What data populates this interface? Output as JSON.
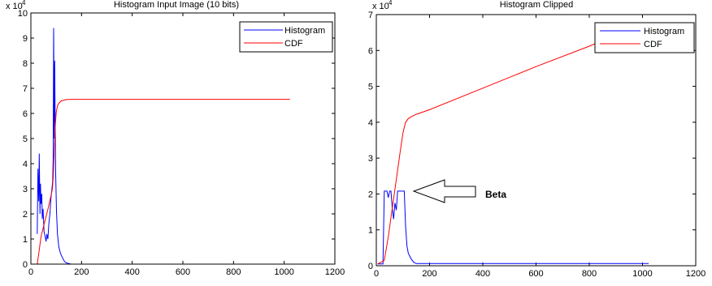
{
  "chart_data": [
    {
      "type": "line",
      "title": "Histogram Input Image (10 bits)",
      "xlim": [
        0,
        1200
      ],
      "ylim": [
        0,
        10
      ],
      "y_multiplier": "x 10",
      "y_multiplier_exp": "4",
      "xticks": [
        0,
        200,
        400,
        600,
        800,
        1000,
        1200
      ],
      "yticks": [
        0,
        1,
        2,
        3,
        4,
        5,
        6,
        7,
        8,
        9,
        10
      ],
      "grid": false,
      "legend_placement": "top-right",
      "series": [
        {
          "name": "Histogram",
          "color": "#0000ff",
          "x": [
            25,
            28,
            31,
            33,
            36,
            38,
            40,
            43,
            45,
            48,
            52,
            56,
            60,
            63,
            67,
            71,
            75,
            79,
            83,
            86,
            88,
            90,
            92,
            94,
            96,
            98,
            101,
            105,
            110,
            115,
            120,
            125,
            130,
            135,
            140,
            148,
            155,
            160
          ],
          "y": [
            1.2,
            3.8,
            2.5,
            4.4,
            2.0,
            3.2,
            2.4,
            2.8,
            1.8,
            2.2,
            1.3,
            1.1,
            0.9,
            1.2,
            1.0,
            1.6,
            2.0,
            2.6,
            3.0,
            3.3,
            4.2,
            9.4,
            5.0,
            8.1,
            5.5,
            3.6,
            2.1,
            1.2,
            0.7,
            0.5,
            0.35,
            0.25,
            0.15,
            0.08,
            0.05,
            0.03,
            0.01,
            0.0
          ]
        },
        {
          "name": "CDF",
          "color": "#ff0000",
          "x": [
            25,
            30,
            40,
            50,
            60,
            70,
            80,
            85,
            88,
            91,
            94,
            97,
            100,
            105,
            110,
            120,
            130,
            140,
            160,
            200,
            400,
            700,
            1023
          ],
          "y": [
            0.0,
            0.35,
            1.1,
            1.5,
            1.9,
            2.3,
            2.75,
            3.0,
            3.4,
            4.2,
            5.0,
            5.6,
            6.05,
            6.3,
            6.4,
            6.5,
            6.53,
            6.55,
            6.56,
            6.56,
            6.56,
            6.56,
            6.56
          ]
        }
      ]
    },
    {
      "type": "line",
      "title": "Histogram Clipped",
      "xlim": [
        0,
        1200
      ],
      "ylim": [
        0,
        7
      ],
      "y_multiplier": "x 10",
      "y_multiplier_exp": "4",
      "xticks": [
        0,
        200,
        400,
        600,
        800,
        1000,
        1200
      ],
      "yticks": [
        0,
        1,
        2,
        3,
        4,
        5,
        6,
        7
      ],
      "grid": false,
      "legend_placement": "top-right",
      "series": [
        {
          "name": "Histogram",
          "color": "#0000ff",
          "x": [
            5,
            25,
            30,
            35,
            40,
            45,
            50,
            55,
            60,
            65,
            70,
            75,
            80,
            85,
            90,
            100,
            105,
            110,
            115,
            120,
            130,
            140,
            150,
            160,
            200,
            600,
            1023
          ],
          "y": [
            0.05,
            0.05,
            2.08,
            2.08,
            2.08,
            1.9,
            2.08,
            2.08,
            1.6,
            1.3,
            1.75,
            1.55,
            2.08,
            2.08,
            2.08,
            2.08,
            2.08,
            1.1,
            0.55,
            0.35,
            0.2,
            0.1,
            0.06,
            0.06,
            0.06,
            0.06,
            0.06
          ]
        },
        {
          "name": "CDF",
          "color": "#ff0000",
          "x": [
            5,
            30,
            45,
            60,
            75,
            90,
            100,
            110,
            120,
            130,
            150,
            200,
            400,
            600,
            800,
            880
          ],
          "y": [
            0.05,
            0.15,
            0.8,
            1.6,
            2.4,
            3.2,
            3.7,
            4.0,
            4.1,
            4.15,
            4.22,
            4.35,
            4.95,
            5.55,
            6.12,
            6.37
          ]
        }
      ],
      "annotation": {
        "text": "Beta",
        "arrow_target": [
          100,
          2.08
        ]
      }
    }
  ]
}
